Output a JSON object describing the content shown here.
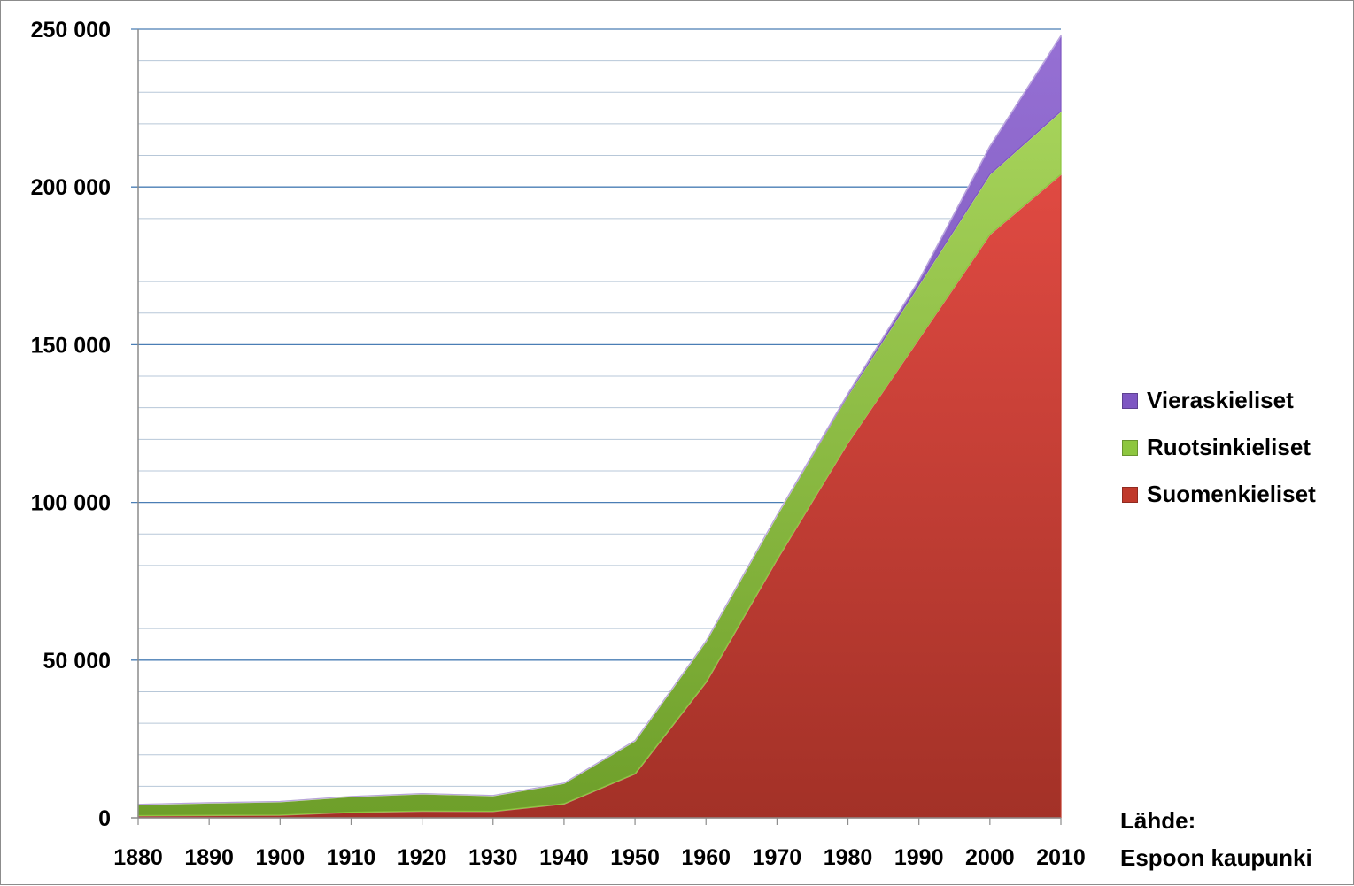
{
  "chart_data": {
    "type": "area",
    "stacked": true,
    "title": "",
    "xlabel": "",
    "ylabel": "",
    "x": [
      "1880",
      "1890",
      "1900",
      "1910",
      "1920",
      "1930",
      "1940",
      "1950",
      "1960",
      "1970",
      "1980",
      "1990",
      "2000",
      "2010"
    ],
    "ylim": [
      0,
      250000
    ],
    "y_major_ticks": [
      0,
      50000,
      100000,
      150000,
      200000,
      250000
    ],
    "y_tick_labels": [
      "0",
      "50 000",
      "100 000",
      "150 000",
      "200 000",
      "250 000"
    ],
    "y_minor_step": 10000,
    "grid": true,
    "legend_position": "right",
    "series": [
      {
        "name": "Suomenkieliset",
        "color": "#c0392b",
        "values": [
          700,
          800,
          900,
          1800,
          2200,
          2100,
          4500,
          14000,
          43000,
          82000,
          119000,
          152000,
          185000,
          204000
        ]
      },
      {
        "name": "Ruotsinkieliset",
        "color": "#8dc63f",
        "values": [
          3600,
          4000,
          4300,
          5000,
          5500,
          5000,
          6500,
          10500,
          13000,
          14000,
          15000,
          17000,
          19000,
          20000
        ]
      },
      {
        "name": "Vieraskieliset",
        "color": "#7e57c2",
        "values": [
          0,
          0,
          0,
          0,
          0,
          0,
          0,
          0,
          0,
          0,
          500,
          1500,
          9000,
          24000
        ]
      }
    ],
    "source_lines": [
      "Lähde:",
      "Espoon kaupunki"
    ]
  }
}
